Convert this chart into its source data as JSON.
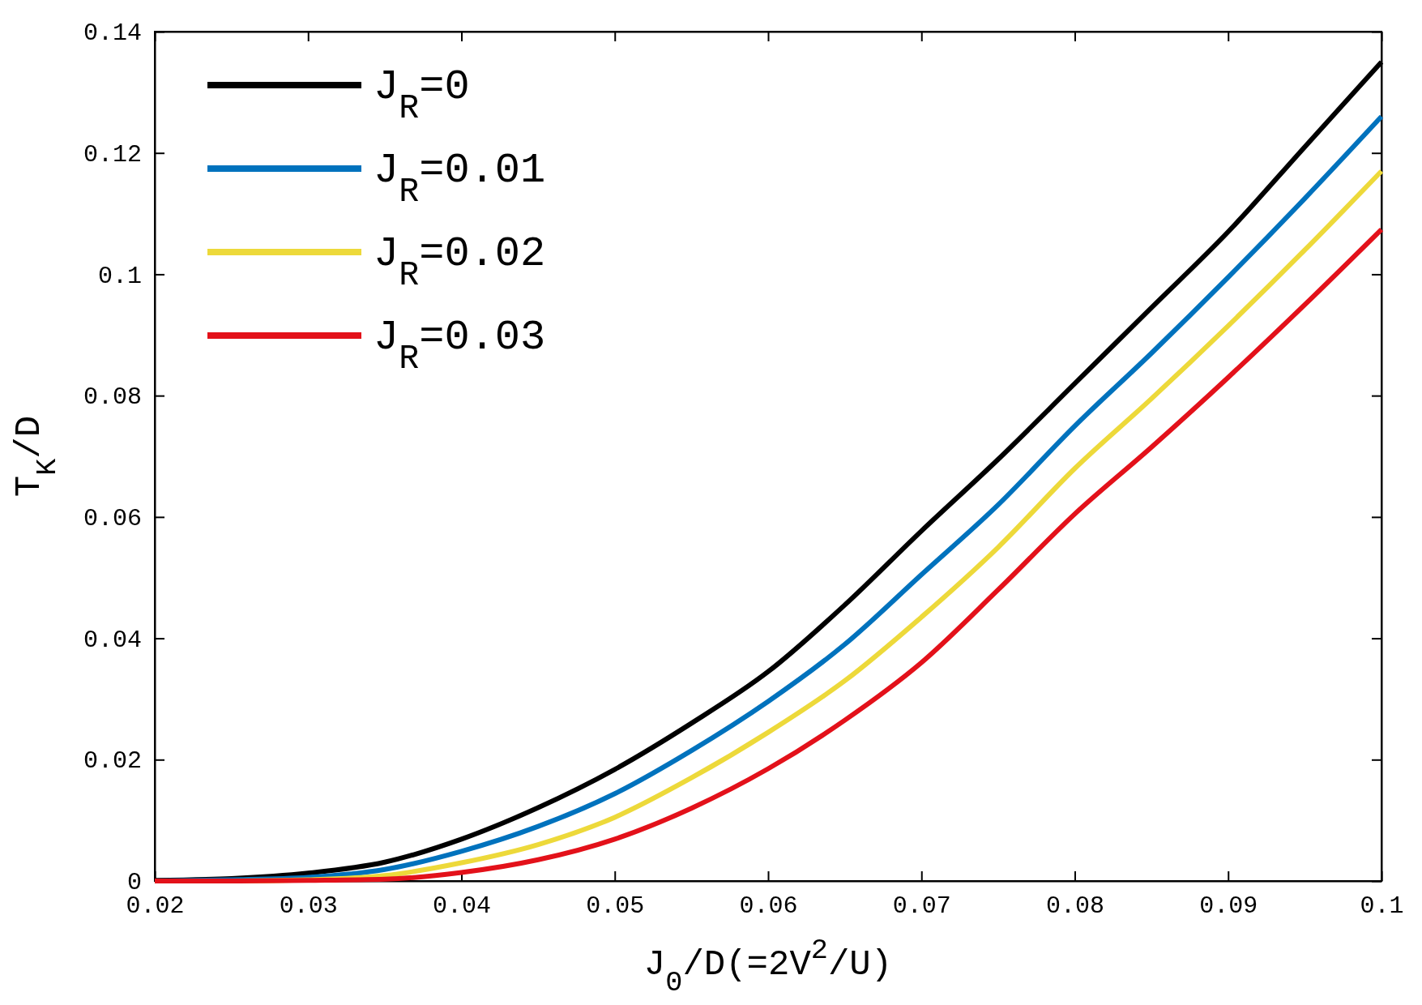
{
  "chart_data": {
    "type": "line",
    "xlabel": "J$_{0}$/D(=2V$^{2}$/U)",
    "ylabel": "T$_{K}$/D",
    "x": [
      0.02,
      0.025,
      0.03,
      0.035,
      0.04,
      0.045,
      0.05,
      0.055,
      0.06,
      0.065,
      0.07,
      0.075,
      0.08,
      0.085,
      0.09,
      0.095,
      0.1
    ],
    "series": [
      {
        "name": "J$_{R}$=0",
        "color": "#000000",
        "values": [
          0.0001,
          0.0004,
          0.0013,
          0.0031,
          0.0069,
          0.0121,
          0.0184,
          0.026,
          0.0345,
          0.0455,
          0.0577,
          0.0695,
          0.082,
          0.0945,
          0.107,
          0.121,
          0.135
        ]
      },
      {
        "name": "J$_{R}$=0.01",
        "color": "#0072bd",
        "values": [
          0,
          0.0002,
          0.0006,
          0.0019,
          0.0049,
          0.009,
          0.0144,
          0.0215,
          0.0296,
          0.039,
          0.0505,
          0.062,
          0.075,
          0.087,
          0.0995,
          0.1125,
          0.126
        ]
      },
      {
        "name": "J$_{R}$=0.02",
        "color": "#edd93a",
        "values": [
          0,
          0,
          0.0002,
          0.0009,
          0.003,
          0.006,
          0.0105,
          0.017,
          0.0245,
          0.033,
          0.0435,
          0.055,
          0.068,
          0.0795,
          0.0915,
          0.104,
          0.117
        ]
      },
      {
        "name": "J$_{R}$=0.03",
        "color": "#e3111a",
        "values": [
          0,
          0,
          0.0001,
          0.0003,
          0.0014,
          0.0035,
          0.0069,
          0.012,
          0.0185,
          0.0265,
          0.036,
          0.048,
          0.0605,
          0.0715,
          0.083,
          0.095,
          0.1074
        ]
      }
    ],
    "xlim": [
      0.02,
      0.1
    ],
    "xticks": [
      0.02,
      0.03,
      0.04,
      0.05,
      0.06,
      0.07,
      0.08,
      0.09,
      0.1
    ],
    "ylim": [
      0,
      0.14
    ],
    "yticks": [
      0,
      0.02,
      0.04,
      0.06,
      0.08,
      0.1,
      0.12,
      0.14
    ],
    "legend": "top left",
    "grid": false,
    "line_style": "solid",
    "marker": "none"
  }
}
